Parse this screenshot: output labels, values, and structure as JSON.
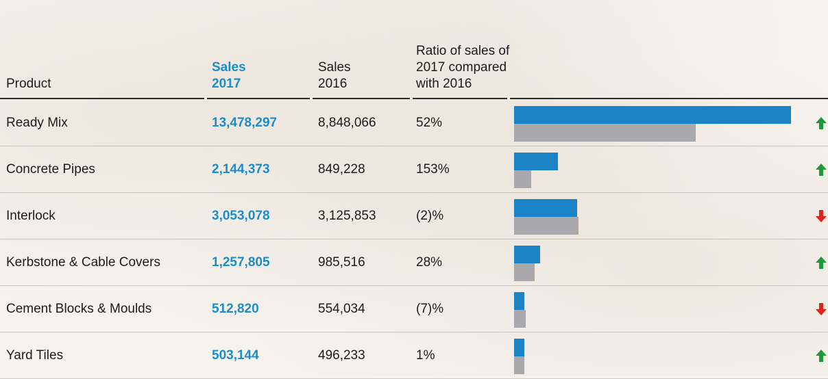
{
  "chart_data": {
    "type": "table",
    "columns": [
      "Product",
      "Sales 2017",
      "Sales 2016",
      "Ratio of sales of 2017 compared with 2016"
    ],
    "header": {
      "product": "Product",
      "s2017": "Sales 2017",
      "s2016": "Sales 2016",
      "ratio": "Ratio of sales of 2017 compared with 2016"
    },
    "rows": [
      {
        "product": "Ready Mix",
        "s2017": "13,478,297",
        "s2016": "8,848,066",
        "ratio": "52%",
        "v2017": 13478297,
        "v2016": 8848066,
        "trend": "up"
      },
      {
        "product": "Concrete Pipes",
        "s2017": "2,144,373",
        "s2016": "849,228",
        "ratio": "153%",
        "v2017": 2144373,
        "v2016": 849228,
        "trend": "up"
      },
      {
        "product": "Interlock",
        "s2017": "3,053,078",
        "s2016": "3,125,853",
        "ratio": "(2)%",
        "v2017": 3053078,
        "v2016": 3125853,
        "trend": "down"
      },
      {
        "product": "Kerbstone & Cable Covers",
        "s2017": "1,257,805",
        "s2016": "985,516",
        "ratio": "28%",
        "v2017": 1257805,
        "v2016": 985516,
        "trend": "up"
      },
      {
        "product": "Cement Blocks & Moulds",
        "s2017": "512,820",
        "s2016": "554,034",
        "ratio": "(7)%",
        "v2017": 512820,
        "v2016": 554034,
        "trend": "down"
      },
      {
        "product": "Yard Tiles",
        "s2017": "503,144",
        "s2016": "496,233",
        "ratio": "1%",
        "v2017": 503144,
        "v2016": 496233,
        "trend": "up"
      }
    ],
    "bar_series": [
      {
        "key": "v2017",
        "color": "#1c83c6"
      },
      {
        "key": "v2016",
        "color": "#a9a9ab"
      }
    ],
    "colors": {
      "sales2017_text": "#1c8dc9",
      "bar2017": "#1c83c6",
      "bar2016": "#a9a9ab",
      "arrow_up": "#1f9a3a",
      "arrow_down": "#e0231b"
    }
  }
}
